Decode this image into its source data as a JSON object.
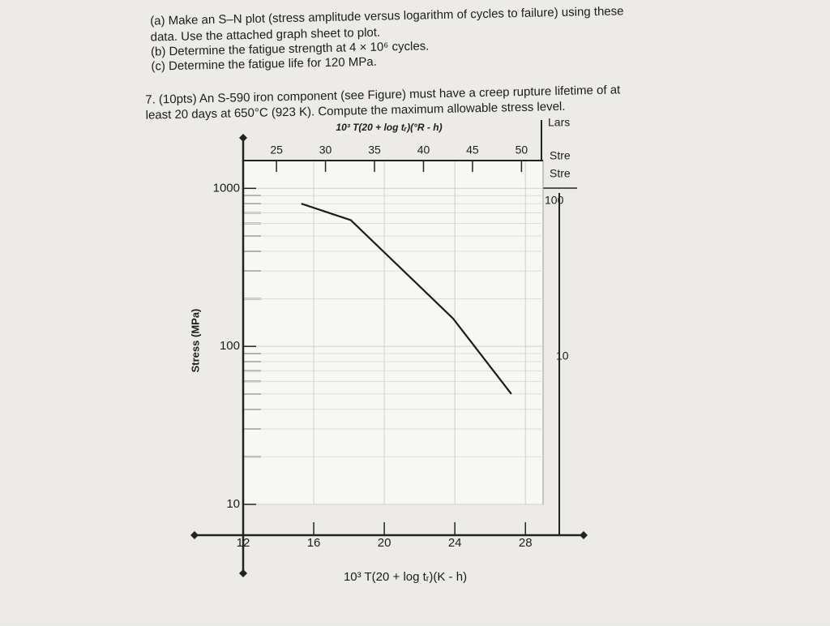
{
  "document": {
    "question_a": [
      "(a) Make an S–N plot (stress amplitude versus logarithm of cycles to failure) using these",
      "data. Use the attached graph sheet to plot.",
      "(b) Determine the fatigue strength at 4 × 10⁶ cycles.",
      "(c) Determine the fatigue life for 120 MPa."
    ],
    "question_7": [
      "7. (10pts) An S-590 iron component (see Figure) must have a creep rupture lifetime of at",
      "least 20 days at 650°C (923 K). Compute the maximum allowable stress level."
    ],
    "side_chart": [
      "Lars",
      "Stre",
      "Stre",
      "100",
      "10"
    ]
  },
  "chart_data": {
    "type": "line",
    "x_label": "10³ T(20 + log tᵣ)(K - h)",
    "x2_label": "10³ T(20 + log tᵣ)(°R - h)",
    "y_label": "Stress (MPa)",
    "log_y": true,
    "grid": true,
    "series": [
      {
        "x": [
          15.3,
          18.1,
          23.9,
          27.2
        ],
        "values": [
          800,
          630,
          150,
          50
        ],
        "color": "#1a1a1a"
      }
    ],
    "xlim": [
      12,
      29
    ],
    "xticks": [
      12,
      16,
      20,
      24,
      28
    ],
    "x2lim": [
      21.6,
      52.2
    ],
    "x2ticks": [
      25,
      30,
      35,
      40,
      45,
      50
    ],
    "ylim": [
      10,
      1500
    ],
    "yticks": [
      10,
      100,
      1000
    ]
  }
}
